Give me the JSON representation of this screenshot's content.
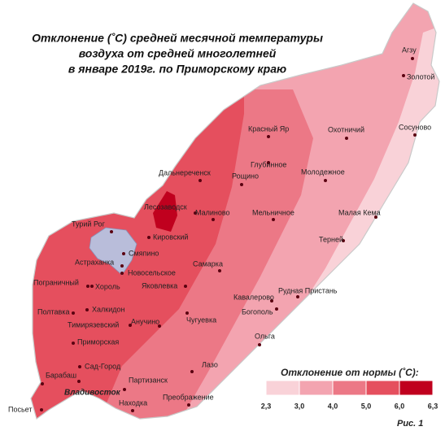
{
  "title": {
    "lines": [
      "Отклонение (˚С) средней  месячной температуры",
      "воздуха  от средней многолетней",
      "в январе 2019г. по Приморскому краю"
    ]
  },
  "stations": [
    "Агзу",
    "Золотой",
    "Сосуново",
    "Охотничий",
    "Красный Яр",
    "Глубинное",
    "Дальнереченск",
    "Рощино",
    "Молодежное",
    "Лесозаводск",
    "Малиново",
    "Мельничное",
    "Малая Кема",
    "Турий Рог",
    "Кировский",
    "Терней",
    "Смяпино",
    "Астраханка",
    "Новосельское",
    "Самарка",
    "Пограничный",
    "Хороль",
    "Яковлевка",
    "Рудная Пристань",
    "Кавалерово",
    "Халкидон",
    "Полтавка",
    "Богополь",
    "Анучино",
    "Чугуевка",
    "Тимирязевский",
    "Ольга",
    "Приморская",
    "Лазо",
    "Сад-Город",
    "Барабаш",
    "Владивосток",
    "Партизанск",
    "Посьет",
    "Находка",
    "Преображение"
  ],
  "legend": {
    "title": "Отклонение от нормы (˚С):",
    "labels": [
      "2,3",
      "3,0",
      "4,0",
      "5,0",
      "6,0",
      "6,3"
    ]
  },
  "figure_label": "Рис. 1"
}
